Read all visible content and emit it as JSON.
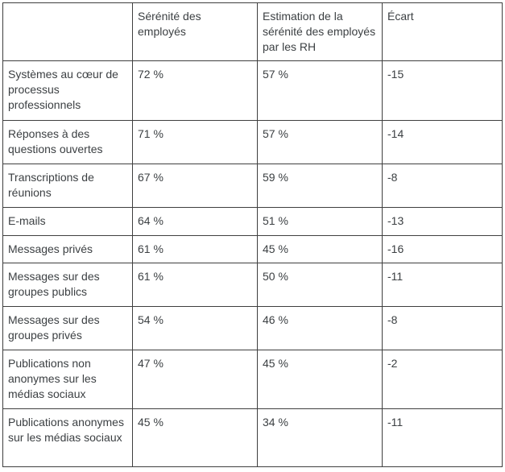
{
  "table": {
    "headers": [
      "",
      "Sérénité des employés",
      "Estimation de la sérénité des employés par les RH",
      "Écart"
    ],
    "rows": [
      {
        "label": "Systèmes au cœur de processus professionnels",
        "employees": "72 %",
        "hr_estimate": "57 %",
        "gap": "-15"
      },
      {
        "label": "Réponses à des questions ouvertes",
        "employees": "71 %",
        "hr_estimate": "57 %",
        "gap": "-14"
      },
      {
        "label": "Transcriptions de réunions",
        "employees": "67 %",
        "hr_estimate": "59 %",
        "gap": "-8"
      },
      {
        "label": "E-mails",
        "employees": "64 %",
        "hr_estimate": "51 %",
        "gap": "-13"
      },
      {
        "label": "Messages privés",
        "employees": "61 %",
        "hr_estimate": "45 %",
        "gap": "-16"
      },
      {
        "label": "Messages sur des groupes publics",
        "employees": "61 %",
        "hr_estimate": "50 %",
        "gap": "-11"
      },
      {
        "label": "Messages sur des groupes privés",
        "employees": "54 %",
        "hr_estimate": "46 %",
        "gap": "-8"
      },
      {
        "label": "Publications non anonymes sur les médias sociaux",
        "employees": "47 %",
        "hr_estimate": "45 %",
        "gap": "-2"
      },
      {
        "label": "Publications anonymes sur les médias sociaux",
        "employees": "45 %",
        "hr_estimate": "34 %",
        "gap": "-11"
      }
    ]
  }
}
